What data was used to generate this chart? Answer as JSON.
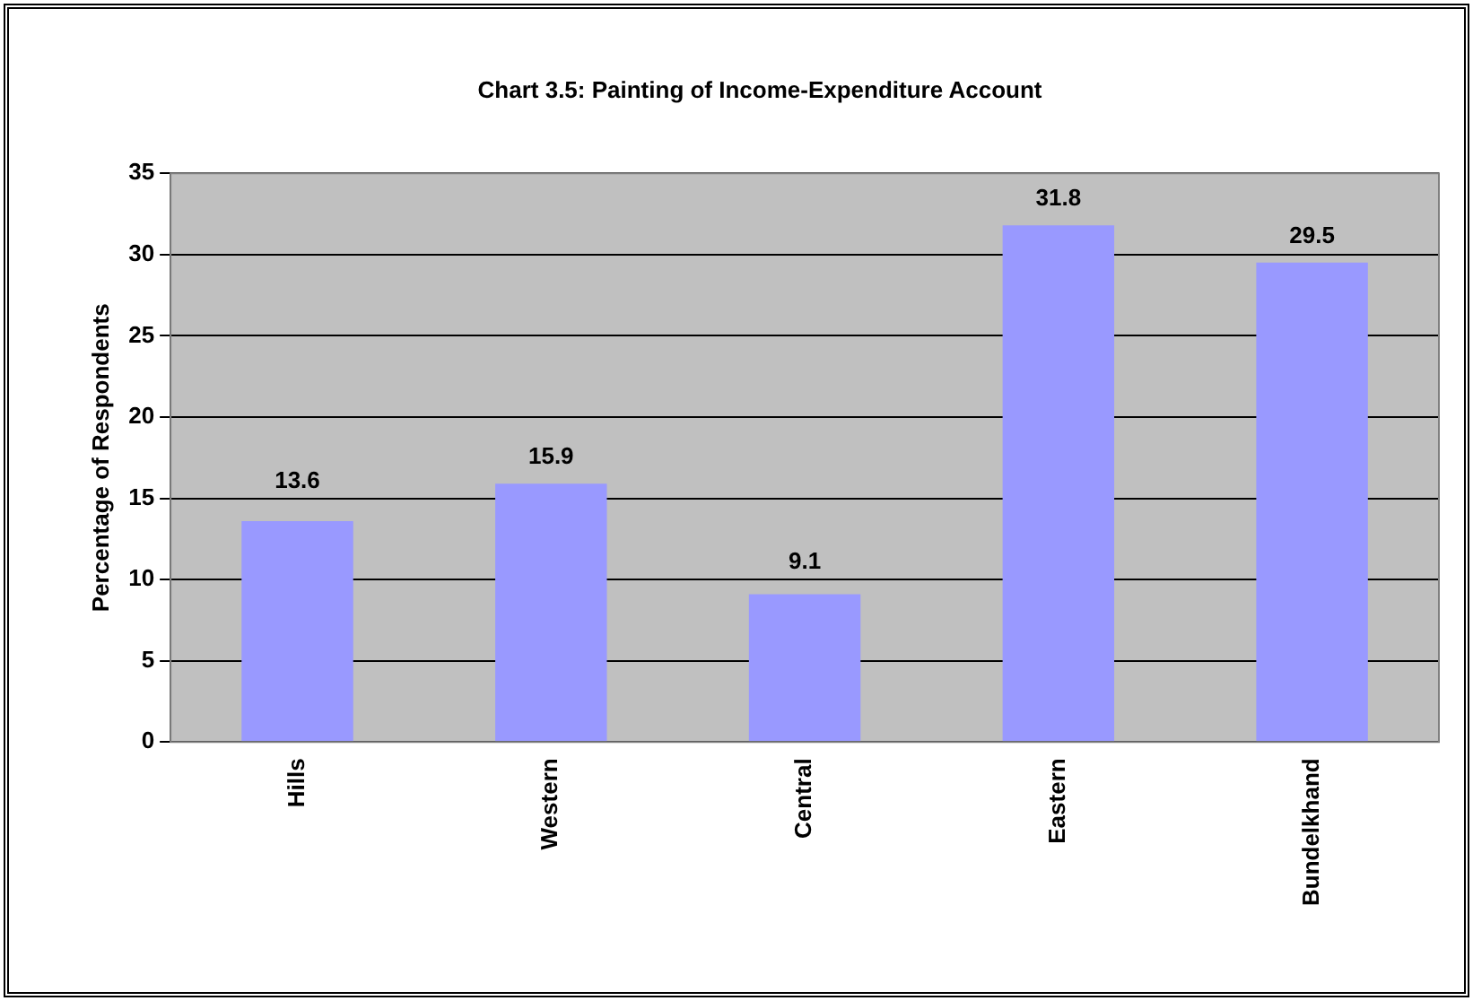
{
  "chart_data": {
    "type": "bar",
    "title": "Chart 3.5: Painting of Income-Expenditure Account",
    "ylabel": "Percentage of Respondents",
    "categories": [
      "Hills",
      "Western",
      "Central",
      "Eastern",
      "Bundelkhand"
    ],
    "values": [
      13.6,
      15.9,
      9.1,
      31.8,
      29.5
    ],
    "color": "#9999ff",
    "ylim": [
      0,
      35
    ],
    "yticks": [
      0,
      5,
      10,
      15,
      20,
      25,
      30,
      35
    ],
    "grid": "y",
    "data_labels": true
  }
}
